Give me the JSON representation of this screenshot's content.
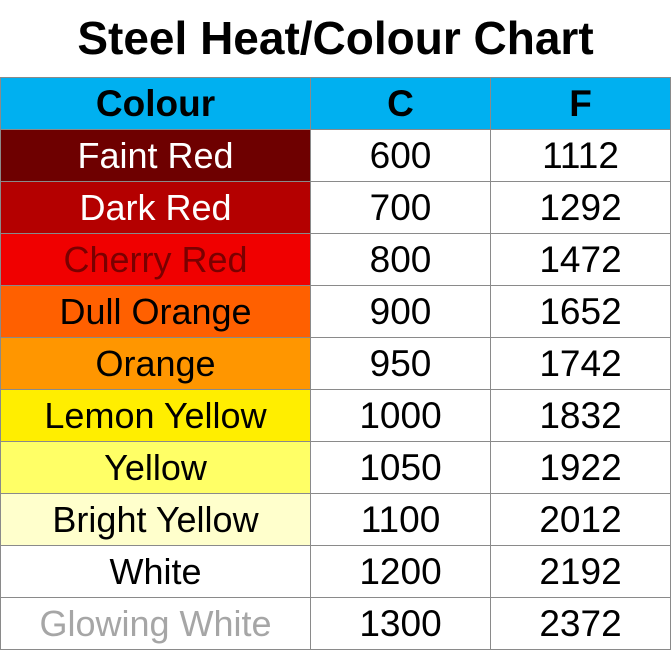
{
  "title": "Steel Heat/Colour Chart",
  "table": {
    "header_color": "#00b0f0",
    "headers": [
      "Colour",
      "C",
      "F"
    ],
    "rows": [
      {
        "colour": "Faint Red",
        "c": "600",
        "f": "1112",
        "bg": "#6e0000",
        "fg": "#ffffff"
      },
      {
        "colour": "Dark Red",
        "c": "700",
        "f": "1292",
        "bg": "#b40000",
        "fg": "#ffffff"
      },
      {
        "colour": "Cherry Red",
        "c": "800",
        "f": "1472",
        "bg": "#f00000",
        "fg": "#7a0000"
      },
      {
        "colour": "Dull Orange",
        "c": "900",
        "f": "1652",
        "bg": "#ff6000",
        "fg": "#000000"
      },
      {
        "colour": "Orange",
        "c": "950",
        "f": "1742",
        "bg": "#ff9600",
        "fg": "#000000"
      },
      {
        "colour": "Lemon Yellow",
        "c": "1000",
        "f": "1832",
        "bg": "#ffee00",
        "fg": "#000000"
      },
      {
        "colour": "Yellow",
        "c": "1050",
        "f": "1922",
        "bg": "#ffff66",
        "fg": "#000000"
      },
      {
        "colour": "Bright Yellow",
        "c": "1100",
        "f": "2012",
        "bg": "#ffffcc",
        "fg": "#000000"
      },
      {
        "colour": "White",
        "c": "1200",
        "f": "2192",
        "bg": "#ffffff",
        "fg": "#000000"
      },
      {
        "colour": "Glowing White",
        "c": "1300",
        "f": "2372",
        "bg": "#ffffff",
        "fg": "#a6a6a6"
      }
    ]
  }
}
